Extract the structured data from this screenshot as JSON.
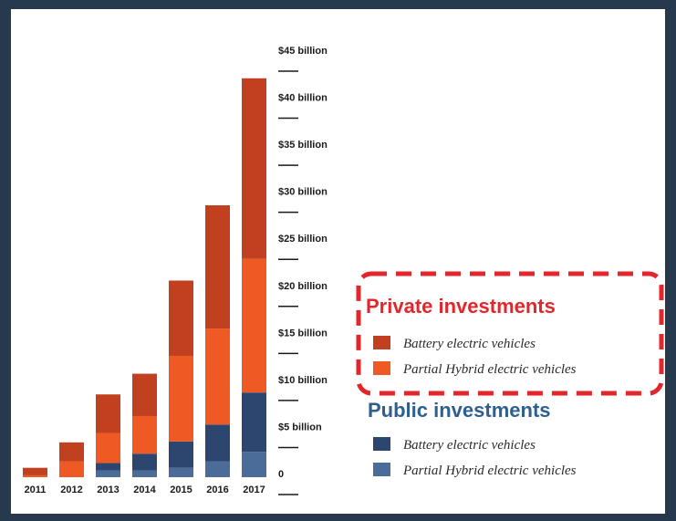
{
  "colors": {
    "private_bev": "#c1401f",
    "private_phev": "#ef5a24",
    "public_bev": "#2c4670",
    "public_phev": "#4b6c98",
    "highlight": "#e3262b",
    "public_title": "#2f5f8f"
  },
  "legend": {
    "private_title": "Private investments",
    "public_title": "Public investments",
    "private_items": [
      "Battery electric vehicles",
      "Partial Hybrid electric vehicles"
    ],
    "public_items": [
      "Battery electric vehicles",
      "Partial Hybrid electric vehicles"
    ]
  },
  "chart_data": {
    "type": "bar",
    "stacked": true,
    "categories": [
      "2011",
      "2012",
      "2013",
      "2014",
      "2015",
      "2016",
      "2017"
    ],
    "y_tick_labels": [
      "0",
      "$5 billion",
      "$10 billion",
      "$15 billion",
      "$20 billion",
      "$25 billion",
      "$30 billion",
      "$35 billion",
      "$40 billion",
      "$45 billion"
    ],
    "y_ticks": [
      0,
      5,
      10,
      15,
      20,
      25,
      30,
      35,
      40,
      45
    ],
    "ylim": [
      0,
      45
    ],
    "grid": false,
    "legend_position": "right",
    "series": [
      {
        "name": "Partial Hybrid electric vehicles (Public)",
        "color_key": "public_phev",
        "values": [
          0,
          0,
          0.7,
          0.7,
          1.0,
          1.7,
          2.7
        ]
      },
      {
        "name": "Battery electric vehicles (Public)",
        "color_key": "public_bev",
        "values": [
          0,
          0,
          0.8,
          1.8,
          2.8,
          3.9,
          6.3
        ]
      },
      {
        "name": "Partial Hybrid electric vehicles (Private)",
        "color_key": "private_phev",
        "values": [
          0.2,
          1.7,
          3.2,
          4.0,
          9.1,
          10.2,
          14.2
        ]
      },
      {
        "name": "Battery electric vehicles (Private)",
        "color_key": "private_bev",
        "values": [
          0.8,
          2.0,
          4.1,
          4.5,
          8.0,
          13.1,
          19.2
        ]
      }
    ]
  }
}
